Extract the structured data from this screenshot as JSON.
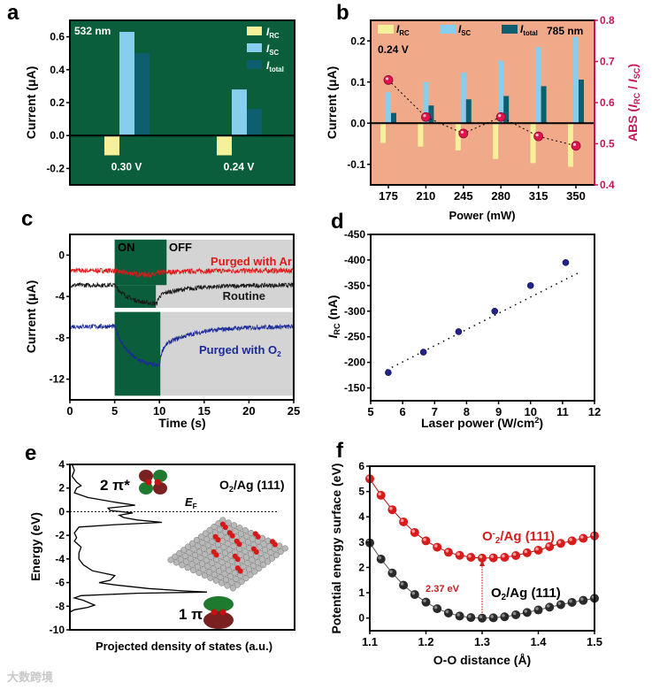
{
  "watermark": "大数跨境",
  "colors": {
    "green": "#0b5e3b",
    "yellow": "#f6f09a",
    "lightblue": "#86cdee",
    "teal": "#0d5f70",
    "salmon": "#f0aa8a",
    "magenta": "#c8155a",
    "red": "#e01a1a",
    "blue": "#1c2a9a",
    "gray": "#d4d4d4"
  },
  "chart_data": [
    {
      "panel": "a",
      "type": "bar",
      "annotation": "532 nm",
      "ylabel": "Current (μA)",
      "ylim": [
        -0.3,
        0.7
      ],
      "yticks": [
        -0.2,
        0.0,
        0.2,
        0.4,
        0.6
      ],
      "categories": [
        "0.30 V",
        "0.24 V"
      ],
      "series": [
        {
          "name": "I",
          "sub": "RC",
          "values": [
            -0.12,
            -0.12
          ]
        },
        {
          "name": "I",
          "sub": "SC",
          "values": [
            0.63,
            0.28
          ]
        },
        {
          "name": "I",
          "sub": "total",
          "values": [
            0.5,
            0.16
          ]
        }
      ],
      "legend": "top-right"
    },
    {
      "panel": "b",
      "type": "bar",
      "annotation": "785 nm",
      "annotation2": "0.24 V",
      "xlabel": "Power (mW)",
      "ylabel": "Current (μA)",
      "ylabel_right": {
        "prefix": "ABS (",
        "a": "I",
        "asub": "RC",
        "mid": " / ",
        "b": "I",
        "bsub": "SC",
        "suffix": ")"
      },
      "ylim": [
        -0.15,
        0.25
      ],
      "yticks": [
        -0.1,
        0.0,
        0.1,
        0.2
      ],
      "ylim_right": [
        0.4,
        0.8
      ],
      "yticks_right": [
        0.4,
        0.5,
        0.6,
        0.7,
        0.8
      ],
      "categories": [
        "175",
        "210",
        "245",
        "280",
        "315",
        "350"
      ],
      "series": [
        {
          "name": "I",
          "sub": "RC",
          "values": [
            -0.048,
            -0.057,
            -0.066,
            -0.087,
            -0.097,
            -0.106
          ]
        },
        {
          "name": "I",
          "sub": "SC",
          "values": [
            0.075,
            0.1,
            0.123,
            0.152,
            0.185,
            0.21
          ]
        },
        {
          "name": "I",
          "sub": "total",
          "values": [
            0.025,
            0.043,
            0.058,
            0.066,
            0.09,
            0.106
          ]
        }
      ],
      "abs_values": [
        0.655,
        0.565,
        0.525,
        0.565,
        0.518,
        0.495
      ],
      "legend": "top-left"
    },
    {
      "panel": "c",
      "type": "line",
      "xlabel": "Time (s)",
      "ylabel": "Current (μA)",
      "xlim": [
        0,
        25
      ],
      "xticks": [
        0,
        5,
        10,
        15,
        20,
        25
      ],
      "ylim": [
        -14,
        2
      ],
      "yticks": [
        -12,
        -8,
        -4,
        0
      ],
      "on_label": "ON",
      "off_label": "OFF",
      "light_on": [
        5,
        10
      ],
      "series": [
        {
          "name": "Purged with Ar",
          "baseline": -1.5,
          "min": -1.9,
          "min_time": 9.5
        },
        {
          "name": "Routine",
          "baseline": -2.9,
          "min": -4.7,
          "min_time": 9.7
        },
        {
          "name": "Purged with O",
          "sub": "2",
          "baseline": -6.9,
          "min": -10.7,
          "min_time": 10.0
        }
      ]
    },
    {
      "panel": "d",
      "type": "scatter",
      "xlabel": "Laser power (W/cm",
      "xlabel_sup": "2",
      "xlabel_end": ")",
      "ylabel": {
        "main": "I",
        "sub": "RC",
        "rest": " (nA)"
      },
      "xlim": [
        5,
        12
      ],
      "xticks": [
        5,
        6,
        7,
        8,
        9,
        10,
        11,
        12
      ],
      "ylim": [
        -125,
        -450
      ],
      "yticks": [
        -150,
        -200,
        -250,
        -300,
        -350,
        -400,
        -450
      ],
      "x": [
        5.55,
        6.65,
        7.75,
        8.88,
        10.0,
        11.1
      ],
      "y": [
        -180,
        -220,
        -260,
        -300,
        -350,
        -395
      ],
      "fit": [
        [
          5.5,
          -185
        ],
        [
          11.5,
          -375
        ]
      ]
    },
    {
      "panel": "e",
      "type": "line",
      "xlabel": "Projected density of states (a.u.)",
      "ylabel": "Energy (eV)",
      "ylim": [
        -10,
        4
      ],
      "yticks": [
        -10,
        -8,
        -6,
        -4,
        -2,
        0,
        2,
        4
      ],
      "fermi_label": "E",
      "fermi_sub": "F",
      "system_label": {
        "a": "O",
        "sub": "2",
        "b": "/Ag (111)"
      },
      "orbital_labels": [
        "2 π*",
        "1 π"
      ],
      "dos": [
        [
          4,
          0.01
        ],
        [
          3.5,
          0.02
        ],
        [
          3,
          0.01
        ],
        [
          2.5,
          0.03
        ],
        [
          2.2,
          0.05
        ],
        [
          2,
          0.03
        ],
        [
          1.6,
          0.02
        ],
        [
          1.2,
          0.08
        ],
        [
          0.8,
          0.2
        ],
        [
          0.55,
          0.29
        ],
        [
          0.3,
          0.17
        ],
        [
          0.1,
          0.18
        ],
        [
          -0.1,
          0.28
        ],
        [
          -0.3,
          0.22
        ],
        [
          -0.5,
          0.24
        ],
        [
          -0.7,
          0.3
        ],
        [
          -0.9,
          0.41
        ],
        [
          -1.1,
          0.2
        ],
        [
          -1.3,
          0.04
        ],
        [
          -1.8,
          0.02
        ],
        [
          -2.2,
          0.03
        ],
        [
          -2.5,
          0.02
        ],
        [
          -3,
          0.05
        ],
        [
          -3.5,
          0.04
        ],
        [
          -4,
          0.04
        ],
        [
          -4.5,
          0.06
        ],
        [
          -5,
          0.1
        ],
        [
          -5.4,
          0.2
        ],
        [
          -5.8,
          0.18
        ],
        [
          -6,
          0.13
        ],
        [
          -6.2,
          0.2
        ],
        [
          -6.5,
          0.35
        ],
        [
          -6.7,
          0.5
        ],
        [
          -6.8,
          0.61
        ],
        [
          -6.9,
          0.3
        ],
        [
          -7.1,
          0.05
        ],
        [
          -7.3,
          0.02
        ],
        [
          -7.5,
          0.06
        ],
        [
          -7.9,
          0.11
        ],
        [
          -8.1,
          0.08
        ],
        [
          -8.3,
          0.02
        ],
        [
          -8.5,
          0.0
        ]
      ]
    },
    {
      "panel": "f",
      "type": "line",
      "xlabel": "O-O distance (Å)",
      "ylabel": "Potential energy surface (eV)",
      "xlim": [
        1.1,
        1.5
      ],
      "xticks": [
        1.1,
        1.2,
        1.3,
        1.4,
        1.5
      ],
      "ylim": [
        -0.5,
        6
      ],
      "yticks": [
        0,
        1,
        2,
        3,
        4,
        5,
        6
      ],
      "x": [
        1.1,
        1.12,
        1.14,
        1.16,
        1.18,
        1.2,
        1.22,
        1.24,
        1.26,
        1.28,
        1.3,
        1.32,
        1.34,
        1.36,
        1.38,
        1.4,
        1.42,
        1.44,
        1.46,
        1.48,
        1.5
      ],
      "series": [
        {
          "name": "O2-/Ag (111)",
          "label": {
            "a": "O",
            "sub": "2",
            "sup": "-",
            "b": "/Ag (111)"
          },
          "values": [
            5.5,
            4.85,
            4.28,
            3.8,
            3.38,
            3.05,
            2.8,
            2.6,
            2.48,
            2.4,
            2.37,
            2.38,
            2.4,
            2.47,
            2.58,
            2.68,
            2.82,
            2.95,
            3.05,
            3.15,
            3.25
          ]
        },
        {
          "name": "O2/Ag (111)",
          "label": {
            "a": "O",
            "sub": "2",
            "b": "/Ag (111)"
          },
          "values": [
            2.97,
            2.33,
            1.78,
            1.3,
            0.93,
            0.63,
            0.37,
            0.2,
            0.08,
            0.02,
            0,
            0.01,
            0.05,
            0.13,
            0.22,
            0.32,
            0.43,
            0.53,
            0.62,
            0.7,
            0.78
          ]
        }
      ],
      "gap_label": "2.37 eV"
    }
  ]
}
